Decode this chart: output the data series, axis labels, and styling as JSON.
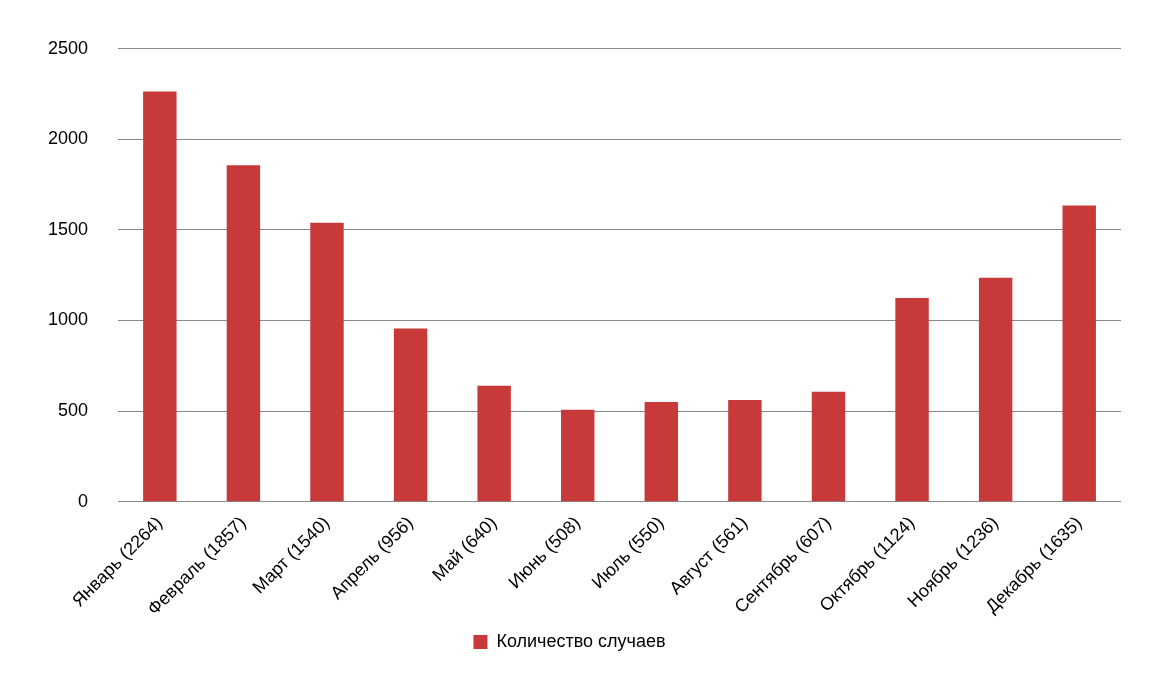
{
  "chart_data": {
    "type": "bar",
    "categories": [
      "Январь (2264)",
      "Февраль (1857)",
      "Март (1540)",
      "Апрель (956)",
      "Май (640)",
      "Июнь (508)",
      "Июль (550)",
      "Август (561)",
      "Сентябрь (607)",
      "Октябрь (1124)",
      "Ноябрь (1236)",
      "Декабрь (1635)"
    ],
    "series": [
      {
        "name": "Количество случаев",
        "color": "#c83a3a",
        "values": [
          2264,
          1857,
          1540,
          956,
          640,
          508,
          550,
          561,
          607,
          1124,
          1236,
          1635
        ]
      }
    ],
    "ylim": [
      0,
      2500
    ],
    "yticks": [
      0,
      500,
      1000,
      1500,
      2000,
      2500
    ],
    "grid": "y",
    "legend": "bottom"
  }
}
